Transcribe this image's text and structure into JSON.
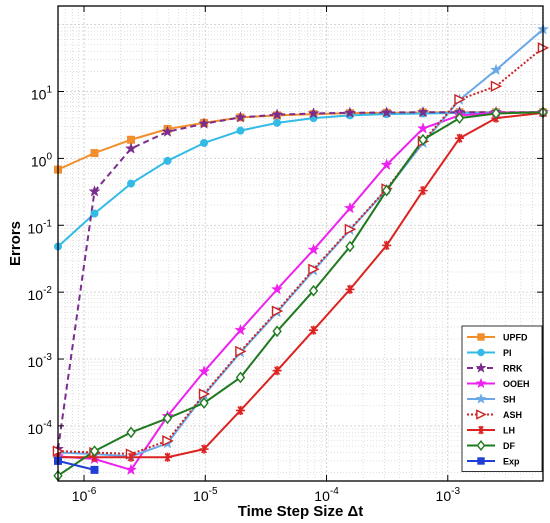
{
  "chart_data": {
    "type": "line",
    "xscale": "log",
    "yscale": "log",
    "xlabel": "Time Step Size Δt",
    "ylabel": "Errors",
    "xlim": [
      6.1e-07,
      0.0061
    ],
    "ylim": [
      1.5e-05,
      190
    ],
    "grid": true,
    "legend_position": "bottom-right",
    "x_ticks": [
      {
        "value": 1e-06,
        "base": "10",
        "exp": "-6"
      },
      {
        "value": 1e-05,
        "base": "10",
        "exp": "-5"
      },
      {
        "value": 0.0001,
        "base": "10",
        "exp": "-4"
      },
      {
        "value": 0.001,
        "base": "10",
        "exp": "-3"
      }
    ],
    "y_ticks": [
      {
        "value": 0.0001,
        "base": "10",
        "exp": "-4"
      },
      {
        "value": 0.001,
        "base": "10",
        "exp": "-3"
      },
      {
        "value": 0.01,
        "base": "10",
        "exp": "-2"
      },
      {
        "value": 0.1,
        "base": "10",
        "exp": "-1"
      },
      {
        "value": 1,
        "base": "10",
        "exp": "0"
      },
      {
        "value": 10,
        "base": "10",
        "exp": "1"
      }
    ],
    "series": [
      {
        "name": "UPFD",
        "color": "#f28e2b",
        "marker": "square",
        "dash": "",
        "x": [
          6.1e-07,
          1.22e-06,
          2.44e-06,
          4.88e-06,
          9.77e-06,
          1.95e-05,
          3.91e-05,
          7.81e-05,
          0.000156,
          0.000313,
          0.000625,
          0.00125,
          0.0025,
          0.0061
        ],
        "y": [
          0.68,
          1.2,
          1.9,
          2.75,
          3.4,
          4.1,
          4.4,
          4.6,
          4.75,
          4.8,
          4.85,
          4.9,
          4.9,
          4.9
        ]
      },
      {
        "name": "PI",
        "color": "#33bbe6",
        "marker": "circle",
        "dash": "",
        "x": [
          6.1e-07,
          1.22e-06,
          2.44e-06,
          4.88e-06,
          9.77e-06,
          1.95e-05,
          3.91e-05,
          7.81e-05,
          0.000156,
          0.000313,
          0.000625,
          0.00125,
          0.0025,
          0.0061
        ],
        "y": [
          0.048,
          0.15,
          0.42,
          0.92,
          1.7,
          2.6,
          3.4,
          4.0,
          4.4,
          4.6,
          4.7,
          4.8,
          4.85,
          4.9
        ]
      },
      {
        "name": "RRK",
        "color": "#7b2d8e",
        "marker": "star",
        "dash": "6,4",
        "x": [
          6.1e-07,
          1.22e-06,
          2.44e-06,
          4.88e-06,
          9.77e-06,
          1.95e-05,
          3.91e-05,
          7.81e-05,
          0.000156,
          0.000313,
          0.000625,
          0.00125,
          0.0025,
          0.0061
        ],
        "y": [
          4.5e-05,
          0.32,
          1.4,
          2.5,
          3.3,
          4.1,
          4.5,
          4.7,
          4.8,
          4.85,
          4.9,
          4.9,
          4.9,
          4.9
        ]
      },
      {
        "name": "OOEH",
        "color": "#ee22ee",
        "marker": "star",
        "dash": "",
        "x": [
          6.1e-07,
          1.22e-06,
          2.44e-06,
          4.88e-06,
          9.77e-06,
          1.95e-05,
          3.91e-05,
          7.81e-05,
          0.000156,
          0.000313,
          0.000625,
          0.00125,
          0.0025,
          0.0061
        ],
        "y": [
          3.5e-05,
          3.2e-05,
          2.2e-05,
          0.00014,
          0.00065,
          0.0027,
          0.011,
          0.043,
          0.18,
          0.8,
          2.8,
          4.4,
          4.8,
          4.9
        ]
      },
      {
        "name": "SH",
        "color": "#6aa8e8",
        "marker": "star",
        "dash": "",
        "x": [
          6.1e-07,
          1.22e-06,
          2.44e-06,
          4.88e-06,
          9.77e-06,
          1.95e-05,
          3.91e-05,
          7.81e-05,
          0.000156,
          0.000313,
          0.000625,
          0.00125,
          0.0025,
          0.0061
        ],
        "y": [
          4e-05,
          3.8e-05,
          3.5e-05,
          5.5e-05,
          0.00029,
          0.00125,
          0.005,
          0.021,
          0.085,
          0.34,
          1.7,
          7.5,
          21,
          85
        ]
      },
      {
        "name": "ASH",
        "color": "#cc2222",
        "marker": "triangle-right",
        "dash": "2,2",
        "x": [
          6.1e-07,
          1.22e-06,
          2.44e-06,
          4.88e-06,
          9.77e-06,
          1.95e-05,
          3.91e-05,
          7.81e-05,
          0.000156,
          0.000313,
          0.000625,
          0.00125,
          0.0025,
          0.0061
        ],
        "y": [
          4.2e-05,
          4e-05,
          3.8e-05,
          6e-05,
          0.0003,
          0.0013,
          0.0052,
          0.022,
          0.087,
          0.35,
          1.8,
          7.6,
          12,
          45
        ]
      },
      {
        "name": "LH",
        "color": "#dd2222",
        "marker": "asterisk",
        "dash": "",
        "x": [
          6.1e-07,
          1.22e-06,
          2.44e-06,
          4.88e-06,
          9.77e-06,
          1.95e-05,
          3.91e-05,
          7.81e-05,
          0.000156,
          0.000313,
          0.000625,
          0.00125,
          0.0025,
          0.0061
        ],
        "y": [
          3.4e-05,
          3.4e-05,
          3.4e-05,
          3.4e-05,
          4.5e-05,
          0.00017,
          0.00067,
          0.0027,
          0.011,
          0.05,
          0.33,
          2.0,
          4.0,
          4.8
        ]
      },
      {
        "name": "DF",
        "color": "#1f7a1f",
        "marker": "diamond",
        "dash": "",
        "x": [
          6.1e-07,
          1.22e-06,
          2.44e-06,
          4.88e-06,
          9.77e-06,
          1.95e-05,
          3.91e-05,
          7.81e-05,
          0.000156,
          0.000313,
          0.000625,
          0.00125,
          0.0025,
          0.0061
        ],
        "y": [
          1.8e-05,
          4.2e-05,
          8e-05,
          0.00013,
          0.00022,
          0.00053,
          0.0026,
          0.0105,
          0.048,
          0.33,
          1.9,
          4.0,
          4.7,
          4.9
        ]
      },
      {
        "name": "Exp",
        "color": "#1f3fd6",
        "marker": "square",
        "dash": "",
        "x": [
          6.1e-07,
          1.22e-06
        ],
        "y": [
          3e-05,
          2.2e-05
        ]
      }
    ]
  }
}
